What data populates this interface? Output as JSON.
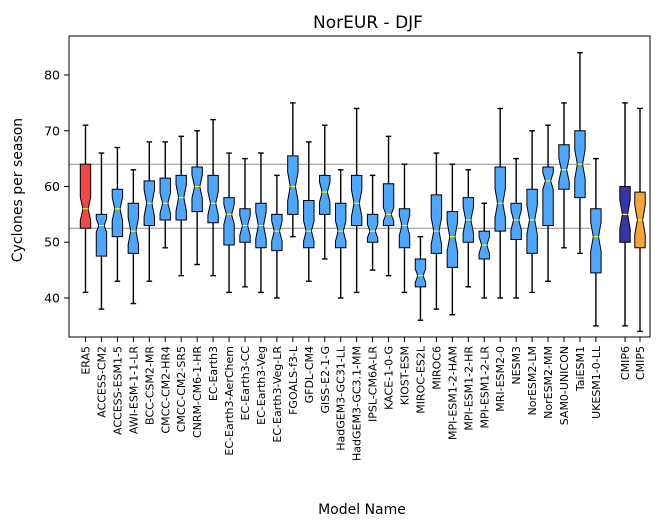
{
  "chart_data": {
    "type": "boxplot",
    "title": "NorEUR - DJF",
    "xlabel": "Model Name",
    "ylabel": "Cyclones per season",
    "ylim": [
      33,
      87
    ],
    "yticks": [
      40,
      50,
      60,
      70,
      80
    ],
    "reference_lines": [
      64,
      52.5
    ],
    "colors": {
      "reference": "#ff7f0e",
      "model": "#4da6ff",
      "cmip6": "#3636a8",
      "cmip5": "#f5a53c",
      "median": "#ffff00",
      "grid_line": "#8c8c8c"
    },
    "series": [
      {
        "name": "ERA5",
        "group": "reference",
        "whislo": 41,
        "q1": 52.5,
        "med": 56,
        "q3": 64,
        "whishi": 71
      },
      {
        "name": "ACCESS-CM2",
        "group": "model",
        "whislo": 38,
        "q1": 47.5,
        "med": 53,
        "q3": 55,
        "whishi": 66
      },
      {
        "name": "ACCESS-ESM1-5",
        "group": "model",
        "whislo": 43,
        "q1": 51,
        "med": 56,
        "q3": 59.5,
        "whishi": 67
      },
      {
        "name": "AWI-ESM-1-1-LR",
        "group": "model",
        "whislo": 39,
        "q1": 48,
        "med": 52,
        "q3": 57,
        "whishi": 63
      },
      {
        "name": "BCC-CSM2-MR",
        "group": "model",
        "whislo": 43,
        "q1": 53,
        "med": 57,
        "q3": 61,
        "whishi": 68
      },
      {
        "name": "CMCC-CM2-HR4",
        "group": "model",
        "whislo": 49,
        "q1": 54,
        "med": 57,
        "q3": 61.5,
        "whishi": 68
      },
      {
        "name": "CMCC-CM2-SR5",
        "group": "model",
        "whislo": 44,
        "q1": 54,
        "med": 58,
        "q3": 62,
        "whishi": 69
      },
      {
        "name": "CNRM-CM6-1-HR",
        "group": "model",
        "whislo": 46,
        "q1": 55.5,
        "med": 60,
        "q3": 63.5,
        "whishi": 70
      },
      {
        "name": "EC-Earth3",
        "group": "model",
        "whislo": 44,
        "q1": 53.5,
        "med": 57,
        "q3": 62,
        "whishi": 72
      },
      {
        "name": "EC-Earth3-AerChem",
        "group": "model",
        "whislo": 41,
        "q1": 49.5,
        "med": 55,
        "q3": 58,
        "whishi": 66
      },
      {
        "name": "EC-Earth3-CC",
        "group": "model",
        "whislo": 42,
        "q1": 50,
        "med": 53,
        "q3": 56,
        "whishi": 65
      },
      {
        "name": "EC-Earth3-Veg",
        "group": "model",
        "whislo": 41,
        "q1": 49,
        "med": 53,
        "q3": 57,
        "whishi": 66
      },
      {
        "name": "EC-Earth3-Veg-LR",
        "group": "model",
        "whislo": 40,
        "q1": 48.5,
        "med": 52,
        "q3": 55,
        "whishi": 62
      },
      {
        "name": "FGOALS-f3-L",
        "group": "model",
        "whislo": 51,
        "q1": 55,
        "med": 60,
        "q3": 65.5,
        "whishi": 75
      },
      {
        "name": "GFDL-CM4",
        "group": "model",
        "whislo": 43,
        "q1": 49,
        "med": 52,
        "q3": 57.5,
        "whishi": 68
      },
      {
        "name": "GISS-E2-1-G",
        "group": "model",
        "whislo": 47,
        "q1": 55,
        "med": 59,
        "q3": 62,
        "whishi": 71
      },
      {
        "name": "HadGEM3-GC31-LL",
        "group": "model",
        "whislo": 40,
        "q1": 49,
        "med": 52,
        "q3": 57,
        "whishi": 63
      },
      {
        "name": "HadGEM3-GC3.1-MM",
        "group": "model",
        "whislo": 41,
        "q1": 53,
        "med": 57,
        "q3": 62,
        "whishi": 74
      },
      {
        "name": "IPSL-CM6A-LR",
        "group": "model",
        "whislo": 45,
        "q1": 50,
        "med": 52,
        "q3": 55,
        "whishi": 62
      },
      {
        "name": "KACE-1-0-G",
        "group": "model",
        "whislo": 44,
        "q1": 53,
        "med": 55,
        "q3": 60.5,
        "whishi": 69
      },
      {
        "name": "KIOST-ESM",
        "group": "model",
        "whislo": 41,
        "q1": 49,
        "med": 53,
        "q3": 56,
        "whishi": 64
      },
      {
        "name": "MIROC-ES2L",
        "group": "model",
        "whislo": 36,
        "q1": 42,
        "med": 44,
        "q3": 47,
        "whishi": 51
      },
      {
        "name": "MIROC6",
        "group": "model",
        "whislo": 38,
        "q1": 48,
        "med": 52,
        "q3": 58.5,
        "whishi": 66
      },
      {
        "name": "MPI-ESM1-2-HAM",
        "group": "model",
        "whislo": 37,
        "q1": 45.5,
        "med": 51,
        "q3": 55.5,
        "whishi": 64
      },
      {
        "name": "MPI-ESM1-2-HR",
        "group": "model",
        "whislo": 42,
        "q1": 50,
        "med": 54,
        "q3": 58,
        "whishi": 63
      },
      {
        "name": "MPI-ESM1-2-LR",
        "group": "model",
        "whislo": 40,
        "q1": 47,
        "med": 49.5,
        "q3": 52,
        "whishi": 57
      },
      {
        "name": "MRI-ESM2-0",
        "group": "model",
        "whislo": 40,
        "q1": 52,
        "med": 57,
        "q3": 63.5,
        "whishi": 74
      },
      {
        "name": "NESM3",
        "group": "model",
        "whislo": 40,
        "q1": 50.5,
        "med": 54,
        "q3": 57,
        "whishi": 65
      },
      {
        "name": "NorESM2-LM",
        "group": "model",
        "whislo": 41,
        "q1": 48,
        "med": 54,
        "q3": 59.5,
        "whishi": 70
      },
      {
        "name": "NorESM2-MM",
        "group": "model",
        "whislo": 43,
        "q1": 53,
        "med": 61,
        "q3": 63.5,
        "whishi": 71
      },
      {
        "name": "SAM0-UNICON",
        "group": "model",
        "whislo": 49,
        "q1": 59.5,
        "med": 63,
        "q3": 67.5,
        "whishi": 75
      },
      {
        "name": "TaiESM1",
        "group": "model",
        "whislo": 48,
        "q1": 58,
        "med": 64,
        "q3": 70,
        "whishi": 84
      },
      {
        "name": "UKESM1-0-LL",
        "group": "model",
        "whislo": 35,
        "q1": 44.5,
        "med": 51,
        "q3": 56,
        "whishi": 65
      },
      {
        "name": "CMIP6",
        "group": "cmip6",
        "whislo": 35,
        "q1": 50,
        "med": 55,
        "q3": 60,
        "whishi": 75
      },
      {
        "name": "CMIP5",
        "group": "cmip5",
        "whislo": 34,
        "q1": 49,
        "med": 54,
        "q3": 59,
        "whishi": 74
      }
    ]
  }
}
